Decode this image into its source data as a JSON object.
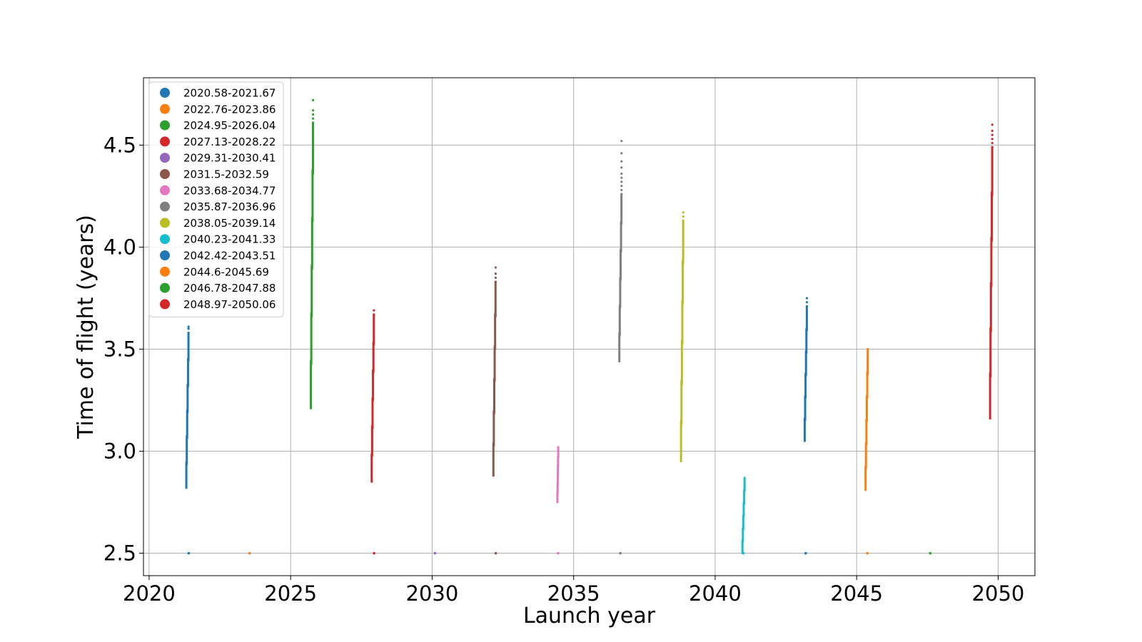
{
  "chart_data": {
    "type": "scatter",
    "title": "",
    "xlabel": "Launch year",
    "ylabel": "Time of flight (years)",
    "xlim": [
      2019.8,
      2051.3
    ],
    "ylim": [
      2.39,
      4.83
    ],
    "xticks": [
      2020,
      2025,
      2030,
      2035,
      2040,
      2045,
      2050
    ],
    "xtick_labels": [
      "2020",
      "2025",
      "2030",
      "2035",
      "2040",
      "2045",
      "2050"
    ],
    "yticks": [
      2.5,
      3.0,
      3.5,
      4.0,
      4.5
    ],
    "ytick_labels": [
      "2.5",
      "3.0",
      "3.5",
      "4.0",
      "4.5"
    ],
    "grid": true,
    "legend_position": "top-left",
    "baseline_y": 2.5,
    "series": [
      {
        "name": "2020.58-2021.67",
        "color": "#1f77b4",
        "x_range": [
          2021.3,
          2021.45
        ],
        "y_range": [
          2.82,
          3.61
        ],
        "baseline_x": [
          2021.4
        ],
        "sparse_top": [
          3.61,
          3.6,
          3.58
        ]
      },
      {
        "name": "2022.76-2023.86",
        "color": "#ff7f0e",
        "x_range": null,
        "y_range": null,
        "baseline_x": [
          2023.55
        ],
        "sparse_top": []
      },
      {
        "name": "2024.95-2026.04",
        "color": "#2ca02c",
        "x_range": [
          2025.7,
          2025.85
        ],
        "y_range": [
          3.21,
          4.72
        ],
        "baseline_x": [],
        "sparse_top": [
          4.72,
          4.67,
          4.65,
          4.63,
          4.61
        ]
      },
      {
        "name": "2027.13-2028.22",
        "color": "#d62728",
        "x_range": [
          2027.85,
          2028.0
        ],
        "y_range": [
          2.85,
          3.69
        ],
        "baseline_x": [
          2027.95
        ],
        "sparse_top": [
          3.69,
          3.67
        ]
      },
      {
        "name": "2029.31-2030.41",
        "color": "#9467bd",
        "x_range": null,
        "y_range": null,
        "baseline_x": [
          2030.1
        ],
        "sparse_top": []
      },
      {
        "name": "2031.5-2032.59",
        "color": "#8c564b",
        "x_range": [
          2032.15,
          2032.3
        ],
        "y_range": [
          2.88,
          3.9
        ],
        "baseline_x": [
          2032.25
        ],
        "sparse_top": [
          3.9,
          3.87,
          3.85,
          3.83
        ]
      },
      {
        "name": "2033.68-2034.77",
        "color": "#e377c2",
        "x_range": [
          2034.42,
          2034.48
        ],
        "y_range": [
          2.75,
          3.02
        ],
        "baseline_x": [
          2034.45
        ],
        "sparse_top": []
      },
      {
        "name": "2035.87-2036.96",
        "color": "#7f7f7f",
        "x_range": [
          2036.6,
          2036.75
        ],
        "y_range": [
          3.44,
          4.52
        ],
        "baseline_x": [
          2036.65
        ],
        "sparse_top": [
          4.52,
          4.46,
          4.42,
          4.39,
          4.36,
          4.34,
          4.32,
          4.3,
          4.28,
          4.26
        ]
      },
      {
        "name": "2038.05-2039.14",
        "color": "#bcbd22",
        "x_range": [
          2038.78,
          2038.93
        ],
        "y_range": [
          2.95,
          4.17
        ],
        "baseline_x": [],
        "sparse_top": [
          4.17,
          4.15,
          4.13
        ]
      },
      {
        "name": "2040.23-2041.33",
        "color": "#17becf",
        "x_range": [
          2040.95,
          2041.1
        ],
        "y_range": [
          2.5,
          2.87
        ],
        "baseline_x": [
          2041.0
        ],
        "sparse_top": []
      },
      {
        "name": "2042.42-2043.51",
        "color": "#1f77b4",
        "x_range": [
          2043.15,
          2043.3
        ],
        "y_range": [
          3.05,
          3.75
        ],
        "baseline_x": [
          2043.2
        ],
        "sparse_top": [
          3.75,
          3.73,
          3.71
        ]
      },
      {
        "name": "2044.6-2045.69",
        "color": "#ff7f0e",
        "x_range": [
          2045.3,
          2045.45
        ],
        "y_range": [
          2.81,
          3.5
        ],
        "baseline_x": [
          2045.38
        ],
        "sparse_top": [
          3.5
        ]
      },
      {
        "name": "2046.78-2047.88",
        "color": "#2ca02c",
        "x_range": null,
        "y_range": null,
        "baseline_x": [
          2047.6
        ],
        "sparse_top": []
      },
      {
        "name": "2048.97-2050.06",
        "color": "#d62728",
        "x_range": [
          2049.7,
          2049.85
        ],
        "y_range": [
          3.16,
          4.6
        ],
        "baseline_x": [],
        "sparse_top": [
          4.6,
          4.57,
          4.55,
          4.53,
          4.51,
          4.49
        ]
      }
    ]
  }
}
